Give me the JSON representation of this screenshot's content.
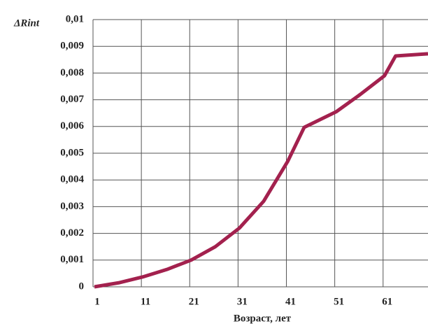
{
  "chart_data": {
    "type": "line",
    "y_label": "ΔRint",
    "x_label": "Возраст, лет",
    "x": [
      1,
      6,
      11,
      16,
      21,
      26,
      31,
      36,
      41,
      44.4,
      51,
      56,
      61,
      63.3,
      70
    ],
    "series": [
      {
        "name": "ΔRint",
        "color": "#a3214e",
        "values": [
          0,
          0.00015,
          0.00037,
          0.00065,
          0.001,
          0.0015,
          0.0022,
          0.0032,
          0.0047,
          0.00597,
          0.00655,
          0.0072,
          0.0079,
          0.00864,
          0.00872
        ]
      }
    ],
    "xlim": [
      1,
      70
    ],
    "xticks": [
      1,
      11,
      21,
      31,
      41,
      51,
      61
    ],
    "ylim": [
      0,
      0.01
    ],
    "yticks": [
      0,
      {
        "value": 0.001,
        "label": "0,001"
      },
      {
        "value": 0.002,
        "label": "0,002"
      },
      {
        "value": 0.003,
        "label": "0,003"
      },
      {
        "value": 0.004,
        "label": "0,004"
      },
      {
        "value": 0.005,
        "label": "0,005"
      },
      {
        "value": 0.006,
        "label": "0,006"
      },
      {
        "value": 0.007,
        "label": "0,007"
      },
      {
        "value": 0.008,
        "label": "0,008"
      },
      {
        "value": 0.009,
        "label": "0,009"
      },
      {
        "value": 0.01,
        "label": "0,01"
      }
    ],
    "grid": true
  }
}
